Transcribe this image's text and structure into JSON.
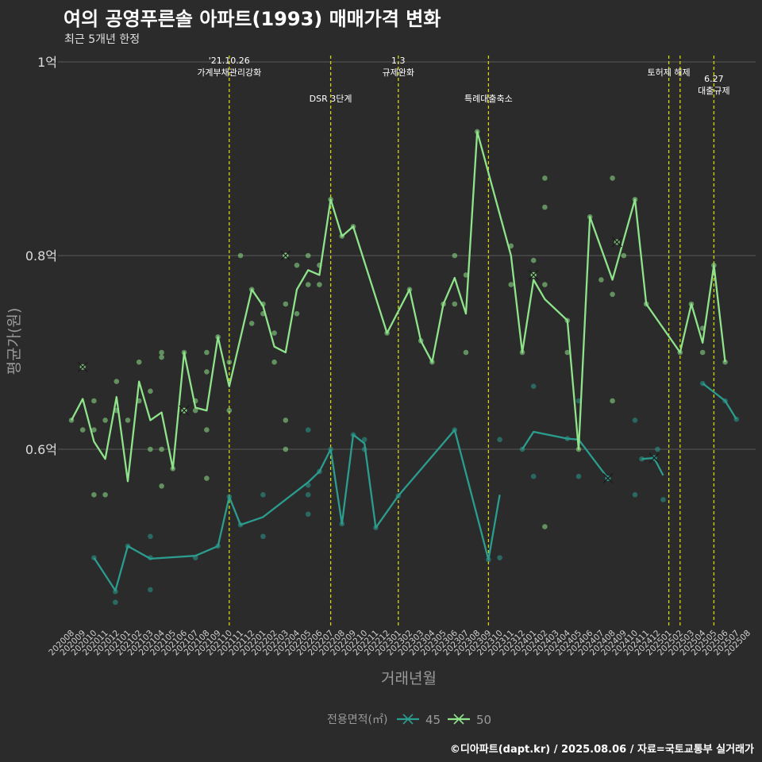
{
  "title": "여의 공영푸른솔 아파트(1993) 매매가격 변화",
  "subtitle": "최근 5개년 한정",
  "caption": "©디아파트(dapt.kr) / 2025.08.06 / 자료=국토교통부 실거래가",
  "colors": {
    "background": "#2b2b2b",
    "grid": "#5a5a5a",
    "s45": "#2a9d8f",
    "s50": "#8fe38a",
    "event_line": "#d4d40f",
    "text": "#e8e8e8"
  },
  "chart_data": {
    "type": "line",
    "xlabel": "거래년월",
    "ylabel": "평균가(원)",
    "ylim": [
      0.415,
      1.0
    ],
    "y_ticks": [
      {
        "value": 0.6,
        "label": "0.6억"
      },
      {
        "value": 0.8,
        "label": "0.8억"
      },
      {
        "value": 1.0,
        "label": "1억"
      }
    ],
    "categories": [
      "202008",
      "202009",
      "202010",
      "202011",
      "202012",
      "202101",
      "202102",
      "202103",
      "202104",
      "202105",
      "202106",
      "202107",
      "202108",
      "202109",
      "202110",
      "202111",
      "202112",
      "202201",
      "202202",
      "202203",
      "202204",
      "202205",
      "202206",
      "202207",
      "202208",
      "202209",
      "202210",
      "202211",
      "202212",
      "202301",
      "202302",
      "202303",
      "202304",
      "202305",
      "202306",
      "202307",
      "202308",
      "202309",
      "202310",
      "202311",
      "202312",
      "202401",
      "202402",
      "202403",
      "202404",
      "202405",
      "202406",
      "202407",
      "202408",
      "202409",
      "202410",
      "202411",
      "202412",
      "202501",
      "202502",
      "202503",
      "202504",
      "202505",
      "202506",
      "202507",
      "202508"
    ],
    "legend_title": "전용면적(㎡)",
    "legend_position": "bottom",
    "series": [
      {
        "name": "45",
        "line": [
          [
            [
              2.0,
              0.488
            ],
            [
              3.9,
              0.454
            ],
            [
              5.0,
              0.5
            ],
            [
              7.0,
              0.487
            ],
            [
              11.0,
              0.49
            ],
            [
              13.0,
              0.5
            ],
            [
              14.0,
              0.551
            ],
            [
              15.0,
              0.522
            ],
            [
              17.0,
              0.53
            ],
            [
              21.0,
              0.566
            ],
            [
              22.0,
              0.577
            ],
            [
              23.0,
              0.6
            ],
            [
              24.0,
              0.523
            ],
            [
              25.0,
              0.615
            ],
            [
              26.0,
              0.606
            ],
            [
              27.0,
              0.519
            ],
            [
              29.0,
              0.552
            ],
            [
              34.0,
              0.62
            ],
            [
              37.0,
              0.486
            ],
            [
              38.0,
              0.553
            ]
          ],
          [
            [
              40.0,
              0.6
            ],
            [
              41.0,
              0.618
            ],
            [
              44.0,
              0.611
            ],
            [
              45.0,
              0.61
            ],
            [
              47.6,
              0.57
            ]
          ],
          [
            [
              50.6,
              0.59
            ],
            [
              51.7,
              0.591
            ],
            [
              52.5,
              0.573
            ]
          ],
          [
            [
              56.0,
              0.668
            ],
            [
              58.0,
              0.65
            ],
            [
              59.0,
              0.631
            ]
          ]
        ],
        "points": [
          [
            2.0,
            0.488
          ],
          [
            3.9,
            0.442
          ],
          [
            3.9,
            0.453
          ],
          [
            5.0,
            0.5
          ],
          [
            7.0,
            0.455
          ],
          [
            7.0,
            0.488
          ],
          [
            7.0,
            0.51
          ],
          [
            11.0,
            0.488
          ],
          [
            13.0,
            0.5
          ],
          [
            14.0,
            0.551
          ],
          [
            15.0,
            0.522
          ],
          [
            17.0,
            0.51
          ],
          [
            17.0,
            0.553
          ],
          [
            21.0,
            0.533
          ],
          [
            21.0,
            0.553
          ],
          [
            21.0,
            0.563
          ],
          [
            21.0,
            0.62
          ],
          [
            22.0,
            0.577
          ],
          [
            23.0,
            0.6
          ],
          [
            24.0,
            0.523
          ],
          [
            25.0,
            0.615
          ],
          [
            26.0,
            0.61
          ],
          [
            26.0,
            0.6
          ],
          [
            27.0,
            0.519
          ],
          [
            29.0,
            0.552
          ],
          [
            34.0,
            0.62
          ],
          [
            37.0,
            0.486
          ],
          [
            38.0,
            0.488
          ],
          [
            38.0,
            0.61
          ],
          [
            40.0,
            0.6
          ],
          [
            41.0,
            0.572
          ],
          [
            41.0,
            0.665
          ],
          [
            44.0,
            0.611
          ],
          [
            45.0,
            0.65
          ],
          [
            45.0,
            0.572
          ],
          [
            47.6,
            0.57
          ],
          [
            50.0,
            0.553
          ],
          [
            50.0,
            0.63
          ],
          [
            50.6,
            0.59
          ],
          [
            51.7,
            0.591
          ],
          [
            52.0,
            0.6
          ],
          [
            52.5,
            0.548
          ],
          [
            56.0,
            0.668
          ],
          [
            58.0,
            0.65
          ],
          [
            59.0,
            0.631
          ]
        ],
        "marked_points": [
          [
            47.6,
            0.57
          ],
          [
            51.7,
            0.591
          ]
        ]
      },
      {
        "name": "50",
        "line": [
          [
            [
              0.0,
              0.63
            ],
            [
              1.0,
              0.652
            ],
            [
              2.0,
              0.608
            ],
            [
              3.0,
              0.59
            ],
            [
              4.0,
              0.654
            ],
            [
              5.0,
              0.567
            ],
            [
              6.0,
              0.67
            ],
            [
              7.0,
              0.63
            ],
            [
              8.0,
              0.638
            ],
            [
              9.0,
              0.58
            ],
            [
              10.0,
              0.7
            ],
            [
              11.0,
              0.643
            ],
            [
              12.0,
              0.64
            ],
            [
              13.0,
              0.716
            ],
            [
              14.0,
              0.665
            ],
            [
              16.0,
              0.765
            ],
            [
              17.0,
              0.748
            ],
            [
              18.0,
              0.706
            ],
            [
              19.0,
              0.7
            ],
            [
              20.0,
              0.765
            ],
            [
              21.0,
              0.785
            ],
            [
              22.0,
              0.78
            ],
            [
              23.0,
              0.858
            ],
            [
              24.0,
              0.82
            ],
            [
              25.0,
              0.83
            ],
            [
              28.0,
              0.72
            ],
            [
              30.0,
              0.765
            ],
            [
              31.0,
              0.712
            ],
            [
              32.0,
              0.69
            ],
            [
              33.0,
              0.75
            ],
            [
              34.0,
              0.777
            ],
            [
              35.0,
              0.74
            ],
            [
              36.0,
              0.928
            ],
            [
              39.0,
              0.8
            ],
            [
              40.0,
              0.7
            ],
            [
              41.0,
              0.775
            ],
            [
              42.0,
              0.755
            ],
            [
              44.0,
              0.733
            ],
            [
              45.0,
              0.6
            ],
            [
              46.0,
              0.84
            ],
            [
              48.0,
              0.775
            ],
            [
              50.0,
              0.858
            ],
            [
              51.0,
              0.75
            ],
            [
              54.0,
              0.7
            ],
            [
              55.0,
              0.75
            ],
            [
              56.0,
              0.71
            ],
            [
              57.0,
              0.79
            ],
            [
              58.0,
              0.69
            ]
          ]
        ],
        "points": [
          [
            0.0,
            0.63
          ],
          [
            1.0,
            0.62
          ],
          [
            2.0,
            0.65
          ],
          [
            2.0,
            0.62
          ],
          [
            2.0,
            0.553
          ],
          [
            3.0,
            0.63
          ],
          [
            3.0,
            0.553
          ],
          [
            4.0,
            0.67
          ],
          [
            4.0,
            0.64
          ],
          [
            5.0,
            0.63
          ],
          [
            6.0,
            0.69
          ],
          [
            6.0,
            0.65
          ],
          [
            7.0,
            0.66
          ],
          [
            7.0,
            0.6
          ],
          [
            8.0,
            0.7
          ],
          [
            8.0,
            0.695
          ],
          [
            8.0,
            0.6
          ],
          [
            8.0,
            0.562
          ],
          [
            9.0,
            0.58
          ],
          [
            10.0,
            0.7
          ],
          [
            10.0,
            0.64
          ],
          [
            11.0,
            0.64
          ],
          [
            11.0,
            0.65
          ],
          [
            12.0,
            0.7
          ],
          [
            12.0,
            0.68
          ],
          [
            12.0,
            0.62
          ],
          [
            12.0,
            0.57
          ],
          [
            13.0,
            0.716
          ],
          [
            14.0,
            0.69
          ],
          [
            14.0,
            0.64
          ],
          [
            15.0,
            0.8
          ],
          [
            16.0,
            0.765
          ],
          [
            16.0,
            0.73
          ],
          [
            17.0,
            0.75
          ],
          [
            17.0,
            0.74
          ],
          [
            18.0,
            0.72
          ],
          [
            18.0,
            0.69
          ],
          [
            19.0,
            0.8
          ],
          [
            19.0,
            0.75
          ],
          [
            19.0,
            0.63
          ],
          [
            19.0,
            0.6
          ],
          [
            20.0,
            0.79
          ],
          [
            20.0,
            0.74
          ],
          [
            21.0,
            0.8
          ],
          [
            21.0,
            0.77
          ],
          [
            22.0,
            0.79
          ],
          [
            22.0,
            0.77
          ],
          [
            23.0,
            0.858
          ],
          [
            24.0,
            0.82
          ],
          [
            25.0,
            0.83
          ],
          [
            28.0,
            0.72
          ],
          [
            30.0,
            0.765
          ],
          [
            31.0,
            0.712
          ],
          [
            32.0,
            0.69
          ],
          [
            33.0,
            0.75
          ],
          [
            34.0,
            0.8
          ],
          [
            34.0,
            0.75
          ],
          [
            35.0,
            0.78
          ],
          [
            35.0,
            0.7
          ],
          [
            36.0,
            0.928
          ],
          [
            39.0,
            0.81
          ],
          [
            39.0,
            0.77
          ],
          [
            40.0,
            0.7
          ],
          [
            41.0,
            0.795
          ],
          [
            41.0,
            0.78
          ],
          [
            42.0,
            0.88
          ],
          [
            42.0,
            0.85
          ],
          [
            42.0,
            0.77
          ],
          [
            42.0,
            0.52
          ],
          [
            44.0,
            0.733
          ],
          [
            44.0,
            0.7
          ],
          [
            45.0,
            0.6
          ],
          [
            46.0,
            0.84
          ],
          [
            47.0,
            0.775
          ],
          [
            48.0,
            0.88
          ],
          [
            48.0,
            0.76
          ],
          [
            48.0,
            0.65
          ],
          [
            49.0,
            0.8
          ],
          [
            50.0,
            0.858
          ],
          [
            51.0,
            0.75
          ],
          [
            54.0,
            0.7
          ],
          [
            55.0,
            0.75
          ],
          [
            56.0,
            0.725
          ],
          [
            56.0,
            0.7
          ],
          [
            57.0,
            0.79
          ],
          [
            58.0,
            0.69
          ]
        ],
        "marked_points": [
          [
            1.0,
            0.685
          ],
          [
            10.0,
            0.64
          ],
          [
            19.0,
            0.8
          ],
          [
            41.0,
            0.78
          ],
          [
            48.4,
            0.814
          ]
        ]
      }
    ],
    "events": [
      {
        "x": 14.0,
        "lines": [
          "'21.10.26",
          "가계부채관리강화"
        ],
        "tier": 1
      },
      {
        "x": 23.0,
        "lines": [
          "DSR 3단계"
        ],
        "tier": 2
      },
      {
        "x": 29.0,
        "lines": [
          "1.3",
          "규제완화"
        ],
        "tier": 1
      },
      {
        "x": 37.0,
        "lines": [
          "특례대출축소"
        ],
        "tier": 2
      },
      {
        "x": 53.0,
        "lines": [
          "토허제 해제"
        ],
        "tier": 1
      },
      {
        "x": 54.0,
        "lines": [],
        "tier": 1
      },
      {
        "x": 57.0,
        "lines": [
          "6.27",
          "대출규제"
        ],
        "tier": 3
      }
    ]
  }
}
